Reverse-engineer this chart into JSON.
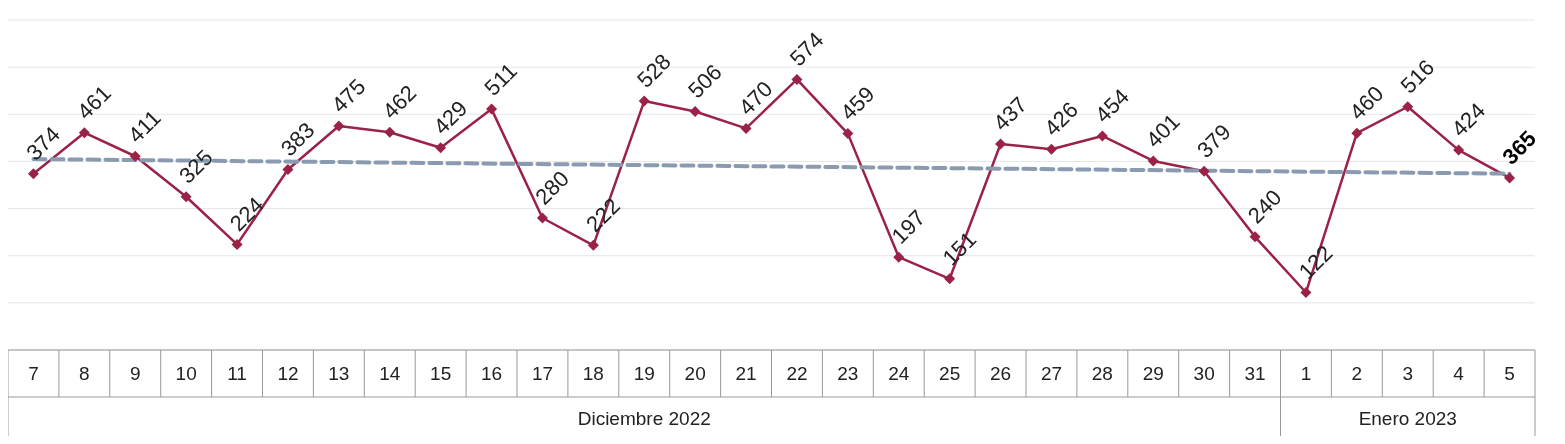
{
  "chart_data": {
    "type": "line",
    "categories": [
      "7",
      "8",
      "9",
      "10",
      "11",
      "12",
      "13",
      "14",
      "15",
      "16",
      "17",
      "18",
      "19",
      "20",
      "21",
      "22",
      "23",
      "24",
      "25",
      "26",
      "27",
      "28",
      "29",
      "30",
      "31",
      "1",
      "2",
      "3",
      "4",
      "5"
    ],
    "series": [
      {
        "color": "#9b2247",
        "marker": "diamond",
        "values": [
          374,
          461,
          411,
          325,
          224,
          383,
          475,
          462,
          429,
          511,
          280,
          222,
          528,
          506,
          470,
          574,
          459,
          197,
          151,
          437,
          426,
          454,
          401,
          379,
          240,
          122,
          460,
          516,
          424,
          365
        ],
        "value_labels": [
          "374",
          "461",
          "411",
          "325",
          "224",
          "383",
          "475",
          "462",
          "429",
          "511",
          "280",
          "222",
          "528",
          "506",
          "470",
          "574",
          "459",
          "197",
          "151",
          "437",
          "426",
          "454",
          "401",
          "379",
          "240",
          "122",
          "460",
          "516",
          "424",
          "365"
        ]
      },
      {
        "type": "line",
        "color": "#8a9ab0",
        "line_style": "dashed",
        "marker": "none",
        "x": [
          "7",
          "5"
        ],
        "values": [
          405,
          374
        ]
      }
    ],
    "ylim": [
      0,
      700
    ],
    "yticks": [
      {
        "value": 100,
        "label": null
      },
      {
        "value": 200,
        "label": null
      },
      {
        "value": 300,
        "label": null
      },
      {
        "value": 400,
        "label": null
      },
      {
        "value": 500,
        "label": null
      },
      {
        "value": 600,
        "label": null
      },
      {
        "value": 700,
        "label": null
      }
    ],
    "tick_labels": "x",
    "grid": "y",
    "annotations": [
      "Diciembre 2022",
      "Enero 2023"
    ]
  }
}
